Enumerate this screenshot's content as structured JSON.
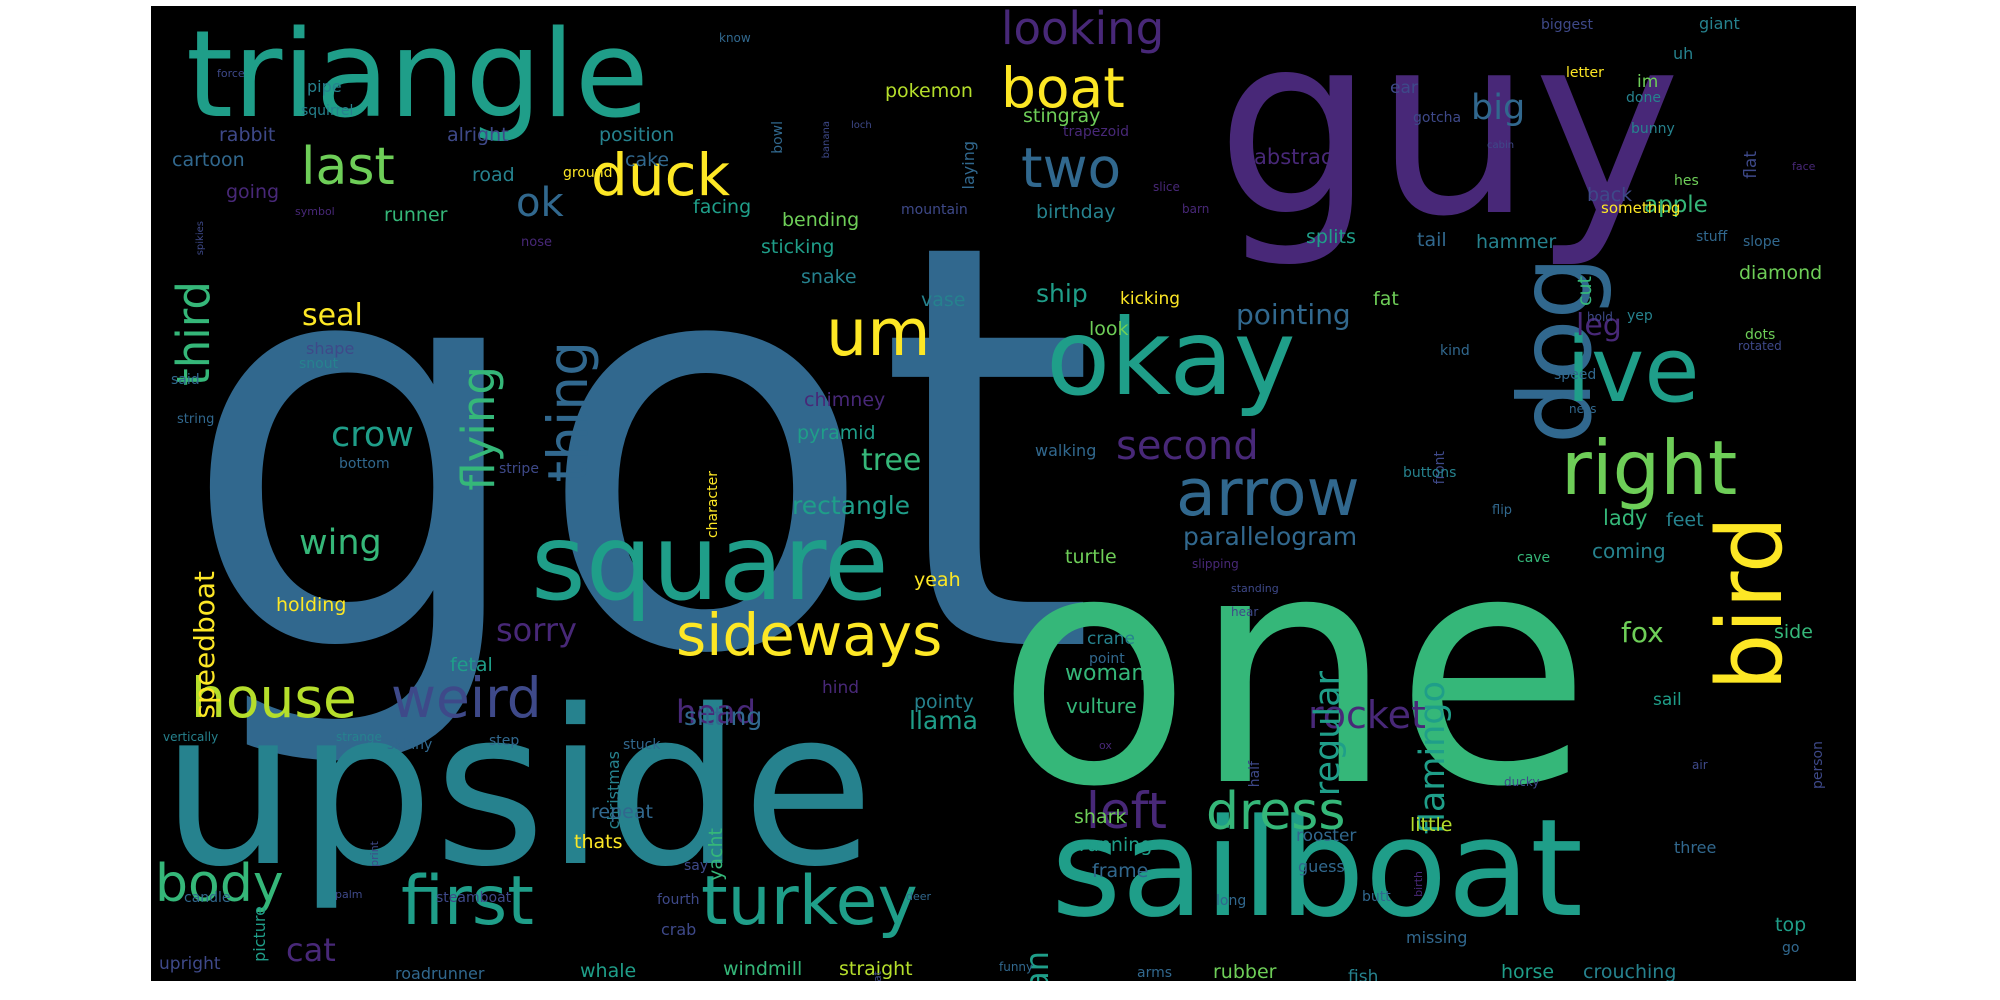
{
  "colors": {
    "c1": "#482878",
    "c2": "#3e4989",
    "c3": "#31688e",
    "c4": "#26828e",
    "c5": "#1f9e89",
    "c6": "#35b779",
    "c7": "#6ece58",
    "c8": "#b5de2b",
    "c9": "#fde725"
  },
  "words": [
    {
      "t": "got",
      "c": "c3"
    },
    {
      "t": "one",
      "c": "c6"
    },
    {
      "t": "guy",
      "c": "c1"
    },
    {
      "t": "upside",
      "c": "c4"
    },
    {
      "t": "sailboat",
      "c": "c5"
    },
    {
      "t": "triangle",
      "c": "c5"
    },
    {
      "t": "okay",
      "c": "c5"
    },
    {
      "t": "square",
      "c": "c5"
    },
    {
      "t": "dog",
      "c": "c3"
    },
    {
      "t": "bird",
      "c": "c9"
    },
    {
      "t": "ive",
      "c": "c5"
    },
    {
      "t": "right",
      "c": "c7"
    },
    {
      "t": "first",
      "c": "c5"
    },
    {
      "t": "turkey",
      "c": "c5"
    },
    {
      "t": "arrow",
      "c": "c3"
    },
    {
      "t": "sideways",
      "c": "c9"
    },
    {
      "t": "house",
      "c": "c8"
    },
    {
      "t": "weird",
      "c": "c2"
    },
    {
      "t": "duck",
      "c": "c9"
    },
    {
      "t": "boat",
      "c": "c9"
    },
    {
      "t": "two",
      "c": "c3"
    },
    {
      "t": "um",
      "c": "c9"
    },
    {
      "t": "last",
      "c": "c7"
    },
    {
      "t": "thing",
      "c": "c3"
    },
    {
      "t": "body",
      "c": "c6"
    },
    {
      "t": "dress",
      "c": "c6"
    },
    {
      "t": "left",
      "c": "c1"
    },
    {
      "t": "flying",
      "c": "c6"
    },
    {
      "t": "third",
      "c": "c6"
    },
    {
      "t": "looking",
      "c": "c1"
    },
    {
      "t": "second",
      "c": "c1"
    },
    {
      "t": "rocket",
      "c": "c1"
    },
    {
      "t": "flamingo",
      "c": "c5"
    },
    {
      "t": "regular",
      "c": "c5"
    },
    {
      "t": "ok",
      "c": "c3"
    },
    {
      "t": "crow",
      "c": "c5"
    },
    {
      "t": "wing",
      "c": "c6"
    },
    {
      "t": "cat",
      "c": "c1"
    },
    {
      "t": "head",
      "c": "c1"
    },
    {
      "t": "sorry",
      "c": "c1"
    },
    {
      "t": "swan",
      "c": "c5"
    },
    {
      "t": "big",
      "c": "c3"
    },
    {
      "t": "leg",
      "c": "c1"
    },
    {
      "t": "fox",
      "c": "c7"
    },
    {
      "t": "speedboat",
      "c": "c9"
    },
    {
      "t": "seal",
      "c": "c9"
    },
    {
      "t": "pointing",
      "c": "c3"
    },
    {
      "t": "tree",
      "c": "c6"
    },
    {
      "t": "parallelogram",
      "c": "c3"
    },
    {
      "t": "rectangle",
      "c": "c5"
    },
    {
      "t": "sitting",
      "c": "c3"
    },
    {
      "t": "woman",
      "c": "c6"
    },
    {
      "t": "vulture",
      "c": "c6"
    },
    {
      "t": "llama",
      "c": "c5"
    },
    {
      "t": "ship",
      "c": "c5"
    },
    {
      "t": "apple",
      "c": "c6"
    },
    {
      "t": "pokemon",
      "c": "c8"
    },
    {
      "t": "rabbit",
      "c": "c2"
    },
    {
      "t": "alright",
      "c": "c2"
    },
    {
      "t": "position",
      "c": "c4"
    },
    {
      "t": "stingray",
      "c": "c7"
    },
    {
      "t": "abstract",
      "c": "c1"
    },
    {
      "t": "cartoon",
      "c": "c3"
    },
    {
      "t": "cake",
      "c": "c3"
    },
    {
      "t": "road",
      "c": "c4"
    },
    {
      "t": "facing",
      "c": "c5"
    },
    {
      "t": "bending",
      "c": "c7"
    },
    {
      "t": "runner",
      "c": "c6"
    },
    {
      "t": "going",
      "c": "c1"
    },
    {
      "t": "birthday",
      "c": "c4"
    },
    {
      "t": "sticking",
      "c": "c5"
    },
    {
      "t": "snake",
      "c": "c4"
    },
    {
      "t": "vase",
      "c": "c4"
    },
    {
      "t": "hammer",
      "c": "c4"
    },
    {
      "t": "tail",
      "c": "c3"
    },
    {
      "t": "splits",
      "c": "c5"
    },
    {
      "t": "back",
      "c": "c2"
    },
    {
      "t": "diamond",
      "c": "c7"
    },
    {
      "t": "cut",
      "c": "c6"
    },
    {
      "t": "fat",
      "c": "c7"
    },
    {
      "t": "look",
      "c": "c7"
    },
    {
      "t": "kicking",
      "c": "c9"
    },
    {
      "t": "chimney",
      "c": "c1"
    },
    {
      "t": "pyramid",
      "c": "c5"
    },
    {
      "t": "walking",
      "c": "c3"
    },
    {
      "t": "lady",
      "c": "c6"
    },
    {
      "t": "coming",
      "c": "c4"
    },
    {
      "t": "feet",
      "c": "c4"
    },
    {
      "t": "yeah",
      "c": "c9"
    },
    {
      "t": "turtle",
      "c": "c7"
    },
    {
      "t": "holding",
      "c": "c9"
    },
    {
      "t": "fetal",
      "c": "c5"
    },
    {
      "t": "crane",
      "c": "c4"
    },
    {
      "t": "point",
      "c": "c3"
    },
    {
      "t": "pointy",
      "c": "c4"
    },
    {
      "t": "christmas",
      "c": "c4"
    },
    {
      "t": "hind",
      "c": "c1"
    },
    {
      "t": "picture",
      "c": "c5"
    },
    {
      "t": "repeat",
      "c": "c3"
    },
    {
      "t": "thats",
      "c": "c9"
    },
    {
      "t": "yacht",
      "c": "c6"
    },
    {
      "t": "shark",
      "c": "c7"
    },
    {
      "t": "running",
      "c": "c5"
    },
    {
      "t": "frame",
      "c": "c3"
    },
    {
      "t": "rooster",
      "c": "c3"
    },
    {
      "t": "little",
      "c": "c8"
    },
    {
      "t": "guess",
      "c": "c3"
    },
    {
      "t": "three",
      "c": "c3"
    },
    {
      "t": "side",
      "c": "c6"
    },
    {
      "t": "sail",
      "c": "c5"
    },
    {
      "t": "top",
      "c": "c5"
    },
    {
      "t": "crouching",
      "c": "c4"
    },
    {
      "t": "horse",
      "c": "c5"
    },
    {
      "t": "missing",
      "c": "c3"
    },
    {
      "t": "fish",
      "c": "c4"
    },
    {
      "t": "rubber",
      "c": "c7"
    },
    {
      "t": "arms",
      "c": "c3"
    },
    {
      "t": "windmill",
      "c": "c6"
    },
    {
      "t": "straight",
      "c": "c8"
    },
    {
      "t": "whale",
      "c": "c5"
    },
    {
      "t": "crab",
      "c": "c2"
    },
    {
      "t": "roadrunner",
      "c": "c3"
    },
    {
      "t": "upright",
      "c": "c2"
    },
    {
      "t": "steamboat",
      "c": "c2"
    },
    {
      "t": "fourth",
      "c": "c2"
    },
    {
      "t": "candle",
      "c": "c3"
    },
    {
      "t": "say",
      "c": "c2"
    },
    {
      "t": "long",
      "c": "c3"
    },
    {
      "t": "butt",
      "c": "c3"
    },
    {
      "t": "step",
      "c": "c3"
    },
    {
      "t": "stuck",
      "c": "c3"
    },
    {
      "t": "skinny",
      "c": "c3"
    },
    {
      "t": "strange",
      "c": "c4"
    },
    {
      "t": "vertically",
      "c": "c4"
    },
    {
      "t": "half",
      "c": "c2"
    },
    {
      "t": "person",
      "c": "c2"
    },
    {
      "t": "speed",
      "c": "c3"
    },
    {
      "t": "ness",
      "c": "c3"
    },
    {
      "t": "front",
      "c": "c2"
    },
    {
      "t": "kind",
      "c": "c3"
    },
    {
      "t": "dots",
      "c": "c7"
    },
    {
      "t": "hold",
      "c": "c2"
    },
    {
      "t": "yep",
      "c": "c4"
    },
    {
      "t": "rotated",
      "c": "c2"
    },
    {
      "t": "slope",
      "c": "c3"
    },
    {
      "t": "stuff",
      "c": "c3"
    },
    {
      "t": "something",
      "c": "c9"
    },
    {
      "t": "hes",
      "c": "c7"
    },
    {
      "t": "bunny",
      "c": "c4"
    },
    {
      "t": "flat",
      "c": "c2"
    },
    {
      "t": "done",
      "c": "c4"
    },
    {
      "t": "im",
      "c": "c7"
    },
    {
      "t": "uh",
      "c": "c4"
    },
    {
      "t": "giant",
      "c": "c4"
    },
    {
      "t": "biggest",
      "c": "c2"
    },
    {
      "t": "letter",
      "c": "c9"
    },
    {
      "t": "ear",
      "c": "c2"
    },
    {
      "t": "gotcha",
      "c": "c2"
    },
    {
      "t": "trapezoid",
      "c": "c1"
    },
    {
      "t": "laying",
      "c": "c3"
    },
    {
      "t": "bowl",
      "c": "c3"
    },
    {
      "t": "know",
      "c": "c3"
    },
    {
      "t": "pipe",
      "c": "c4"
    },
    {
      "t": "squirrel",
      "c": "c4"
    },
    {
      "t": "force",
      "c": "c2"
    },
    {
      "t": "banana",
      "c": "c2"
    },
    {
      "t": "loch",
      "c": "c2"
    },
    {
      "t": "spikies",
      "c": "c2"
    },
    {
      "t": "symbol",
      "c": "c1"
    },
    {
      "t": "ground",
      "c": "c9"
    },
    {
      "t": "nose",
      "c": "c1"
    },
    {
      "t": "mountain",
      "c": "c2"
    },
    {
      "t": "slice",
      "c": "c1"
    },
    {
      "t": "barn",
      "c": "c1"
    },
    {
      "t": "cabin",
      "c": "c2"
    },
    {
      "t": "face",
      "c": "c1"
    },
    {
      "t": "shape",
      "c": "c2"
    },
    {
      "t": "snout",
      "c": "c4"
    },
    {
      "t": "said",
      "c": "c3"
    },
    {
      "t": "string",
      "c": "c3"
    },
    {
      "t": "character",
      "c": "c9"
    },
    {
      "t": "bottom",
      "c": "c3"
    },
    {
      "t": "stripe",
      "c": "c2"
    },
    {
      "t": "buttons",
      "c": "c4"
    },
    {
      "t": "flip",
      "c": "c3"
    },
    {
      "t": "cave",
      "c": "c6"
    },
    {
      "t": "slipping",
      "c": "c1"
    },
    {
      "t": "standing",
      "c": "c2"
    },
    {
      "t": "hear",
      "c": "c2"
    },
    {
      "t": "ox",
      "c": "c1"
    },
    {
      "t": "air",
      "c": "c2"
    },
    {
      "t": "ducky",
      "c": "c2"
    },
    {
      "t": "go",
      "c": "c3"
    },
    {
      "t": "print",
      "c": "c2"
    },
    {
      "t": "palm",
      "c": "c2"
    },
    {
      "t": "deer",
      "c": "c3"
    },
    {
      "t": "funny",
      "c": "c3"
    },
    {
      "t": "hat",
      "c": "c2"
    },
    {
      "t": "peel",
      "c": "c3"
    },
    {
      "t": "birth",
      "c": "c1"
    }
  ]
}
